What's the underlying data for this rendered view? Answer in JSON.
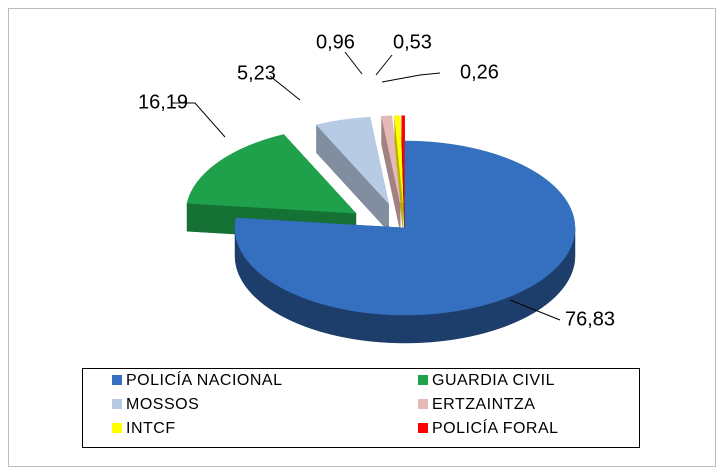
{
  "chart_data": {
    "type": "pie3d",
    "categories": [
      "POLICÍA NACIONAL",
      "GUARDIA CIVIL",
      "MOSSOS",
      "ERTZAINTZA",
      "INTCF",
      "POLICÍA FORAL"
    ],
    "values": [
      76.83,
      16.19,
      5.23,
      0.96,
      0.53,
      0.26
    ],
    "value_labels": [
      "76,83",
      "16,19",
      "5,23",
      "0,96",
      "0,53",
      "0,26"
    ],
    "colors": [
      "#3570c0",
      "#1ea14a",
      "#b8cbe4",
      "#e6b9b8",
      "#ffff00",
      "#ff0000"
    ],
    "legend": "bottom"
  }
}
